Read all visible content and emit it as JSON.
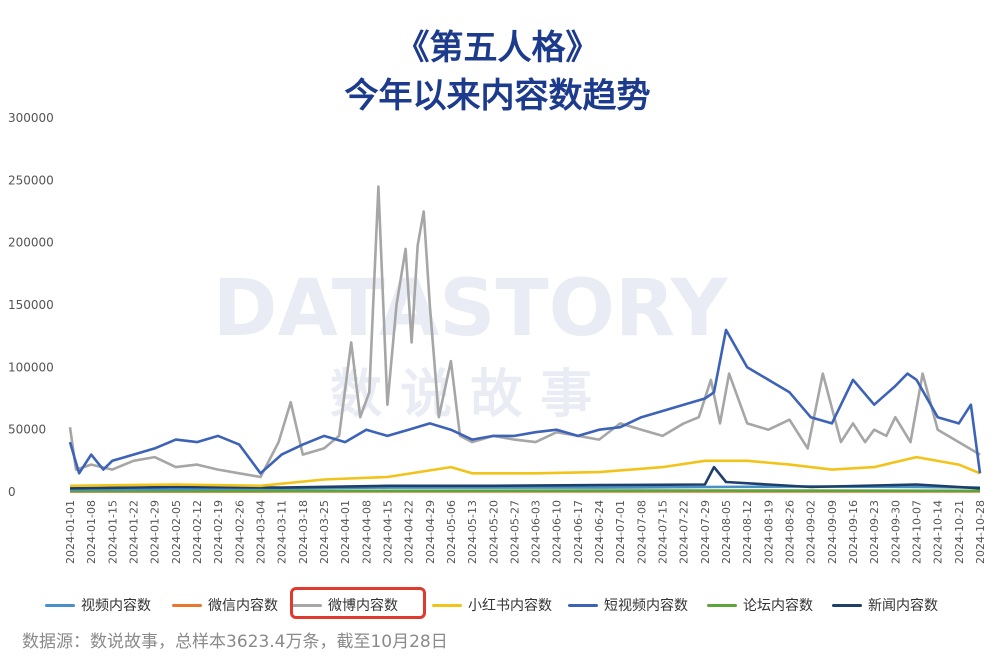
{
  "header": {
    "title_line1": "《第五人格》",
    "title_line2": "今年以来内容数趋势"
  },
  "watermark": {
    "text": "DATASTORY",
    "subtext": "数 说 故 事"
  },
  "source": "数据源：数说故事，总样本3623.4万条，截至10月28日",
  "chart_data": {
    "type": "line",
    "ylim": [
      0,
      300000
    ],
    "yticks": [
      0,
      50000,
      100000,
      150000,
      200000,
      250000,
      300000
    ],
    "xlim": [
      "2024-01-01",
      "2024-10-28"
    ],
    "xticks": [
      "2024-01-01",
      "2024-01-08",
      "2024-01-15",
      "2024-01-22",
      "2024-01-29",
      "2024-02-05",
      "2024-02-12",
      "2024-02-19",
      "2024-02-26",
      "2024-03-04",
      "2024-03-11",
      "2024-03-18",
      "2024-03-25",
      "2024-04-01",
      "2024-04-08",
      "2024-04-15",
      "2024-04-22",
      "2024-04-29",
      "2024-05-06",
      "2024-05-13",
      "2024-05-20",
      "2024-05-27",
      "2024-06-03",
      "2024-06-10",
      "2024-06-17",
      "2024-06-24",
      "2024-07-01",
      "2024-07-08",
      "2024-07-15",
      "2024-07-22",
      "2024-07-29",
      "2024-08-05",
      "2024-08-12",
      "2024-08-19",
      "2024-08-26",
      "2024-09-02",
      "2024-09-09",
      "2024-09-16",
      "2024-09-23",
      "2024-09-30",
      "2024-10-07",
      "2024-10-14",
      "2024-10-21",
      "2024-10-28"
    ],
    "highlighted_series": "微博内容数",
    "legend_position": "bottom",
    "series": [
      {
        "name": "视频内容数",
        "color": "#4a90c8",
        "x": [
          "2024-01-01",
          "2024-02-05",
          "2024-03-11",
          "2024-04-15",
          "2024-05-20",
          "2024-06-24",
          "2024-07-29",
          "2024-09-02",
          "2024-10-07",
          "2024-10-28"
        ],
        "y": [
          2000,
          2500,
          3000,
          3500,
          3500,
          3500,
          4000,
          4500,
          4000,
          3500
        ]
      },
      {
        "name": "微信内容数",
        "color": "#e8772e",
        "x": [
          "2024-01-01",
          "2024-03-11",
          "2024-05-20",
          "2024-07-29",
          "2024-10-28"
        ],
        "y": [
          300,
          400,
          400,
          500,
          400
        ]
      },
      {
        "name": "微博内容数",
        "color": "#a6a6a6",
        "x": [
          "2024-01-01",
          "2024-01-03",
          "2024-01-08",
          "2024-01-15",
          "2024-01-22",
          "2024-01-29",
          "2024-02-05",
          "2024-02-12",
          "2024-02-19",
          "2024-02-26",
          "2024-03-04",
          "2024-03-10",
          "2024-03-14",
          "2024-03-18",
          "2024-03-25",
          "2024-03-30",
          "2024-04-03",
          "2024-04-06",
          "2024-04-09",
          "2024-04-12",
          "2024-04-15",
          "2024-04-18",
          "2024-04-21",
          "2024-04-23",
          "2024-04-25",
          "2024-04-27",
          "2024-04-29",
          "2024-05-02",
          "2024-05-06",
          "2024-05-09",
          "2024-05-13",
          "2024-05-20",
          "2024-05-27",
          "2024-06-03",
          "2024-06-10",
          "2024-06-17",
          "2024-06-24",
          "2024-07-01",
          "2024-07-08",
          "2024-07-15",
          "2024-07-22",
          "2024-07-27",
          "2024-07-31",
          "2024-08-03",
          "2024-08-06",
          "2024-08-12",
          "2024-08-19",
          "2024-08-26",
          "2024-09-01",
          "2024-09-06",
          "2024-09-12",
          "2024-09-16",
          "2024-09-20",
          "2024-09-23",
          "2024-09-27",
          "2024-09-30",
          "2024-10-05",
          "2024-10-09",
          "2024-10-14",
          "2024-10-21",
          "2024-10-28"
        ],
        "y": [
          52000,
          18000,
          22000,
          18000,
          25000,
          28000,
          20000,
          22000,
          18000,
          15000,
          12000,
          40000,
          72000,
          30000,
          35000,
          45000,
          120000,
          60000,
          80000,
          245000,
          70000,
          150000,
          195000,
          120000,
          198000,
          225000,
          150000,
          60000,
          105000,
          45000,
          40000,
          45000,
          42000,
          40000,
          48000,
          45000,
          42000,
          55000,
          50000,
          45000,
          55000,
          60000,
          90000,
          55000,
          95000,
          55000,
          50000,
          58000,
          35000,
          95000,
          40000,
          55000,
          40000,
          50000,
          45000,
          60000,
          40000,
          95000,
          50000,
          40000,
          30000
        ]
      },
      {
        "name": "小红书内容数",
        "color": "#f2c318",
        "x": [
          "2024-01-01",
          "2024-02-05",
          "2024-03-04",
          "2024-03-25",
          "2024-04-15",
          "2024-05-06",
          "2024-05-13",
          "2024-06-03",
          "2024-06-24",
          "2024-07-15",
          "2024-07-29",
          "2024-08-12",
          "2024-08-26",
          "2024-09-09",
          "2024-09-23",
          "2024-10-07",
          "2024-10-21",
          "2024-10-28"
        ],
        "y": [
          5000,
          6000,
          5000,
          10000,
          12000,
          20000,
          15000,
          15000,
          16000,
          20000,
          25000,
          25000,
          22000,
          18000,
          20000,
          28000,
          22000,
          15000
        ]
      },
      {
        "name": "短视频内容数",
        "color": "#3d63b8",
        "x": [
          "2024-01-01",
          "2024-01-04",
          "2024-01-08",
          "2024-01-12",
          "2024-01-15",
          "2024-01-22",
          "2024-01-29",
          "2024-02-05",
          "2024-02-12",
          "2024-02-19",
          "2024-02-26",
          "2024-03-04",
          "2024-03-11",
          "2024-03-18",
          "2024-03-25",
          "2024-04-01",
          "2024-04-08",
          "2024-04-15",
          "2024-04-22",
          "2024-04-29",
          "2024-05-06",
          "2024-05-13",
          "2024-05-20",
          "2024-05-27",
          "2024-06-03",
          "2024-06-10",
          "2024-06-17",
          "2024-06-24",
          "2024-07-01",
          "2024-07-08",
          "2024-07-15",
          "2024-07-22",
          "2024-07-29",
          "2024-08-01",
          "2024-08-05",
          "2024-08-12",
          "2024-08-19",
          "2024-08-26",
          "2024-09-02",
          "2024-09-09",
          "2024-09-16",
          "2024-09-23",
          "2024-09-30",
          "2024-10-04",
          "2024-10-07",
          "2024-10-14",
          "2024-10-21",
          "2024-10-25",
          "2024-10-28"
        ],
        "y": [
          40000,
          15000,
          30000,
          18000,
          25000,
          30000,
          35000,
          42000,
          40000,
          45000,
          38000,
          15000,
          30000,
          38000,
          45000,
          40000,
          50000,
          45000,
          50000,
          55000,
          50000,
          42000,
          45000,
          45000,
          48000,
          50000,
          45000,
          50000,
          52000,
          60000,
          65000,
          70000,
          75000,
          80000,
          130000,
          100000,
          90000,
          80000,
          60000,
          55000,
          90000,
          70000,
          85000,
          95000,
          90000,
          60000,
          55000,
          70000,
          15000
        ]
      },
      {
        "name": "论坛内容数",
        "color": "#5aa63a",
        "x": [
          "2024-01-01",
          "2024-04-15",
          "2024-07-29",
          "2024-10-28"
        ],
        "y": [
          800,
          1000,
          1200,
          1000
        ]
      },
      {
        "name": "新闻内容数",
        "color": "#1f3f6b",
        "x": [
          "2024-01-01",
          "2024-02-05",
          "2024-03-11",
          "2024-04-15",
          "2024-05-20",
          "2024-06-24",
          "2024-07-29",
          "2024-08-01",
          "2024-08-05",
          "2024-09-02",
          "2024-10-07",
          "2024-10-28"
        ],
        "y": [
          3000,
          4000,
          3500,
          5000,
          5000,
          5500,
          6000,
          20000,
          8000,
          4000,
          6000,
          3000
        ]
      }
    ]
  }
}
